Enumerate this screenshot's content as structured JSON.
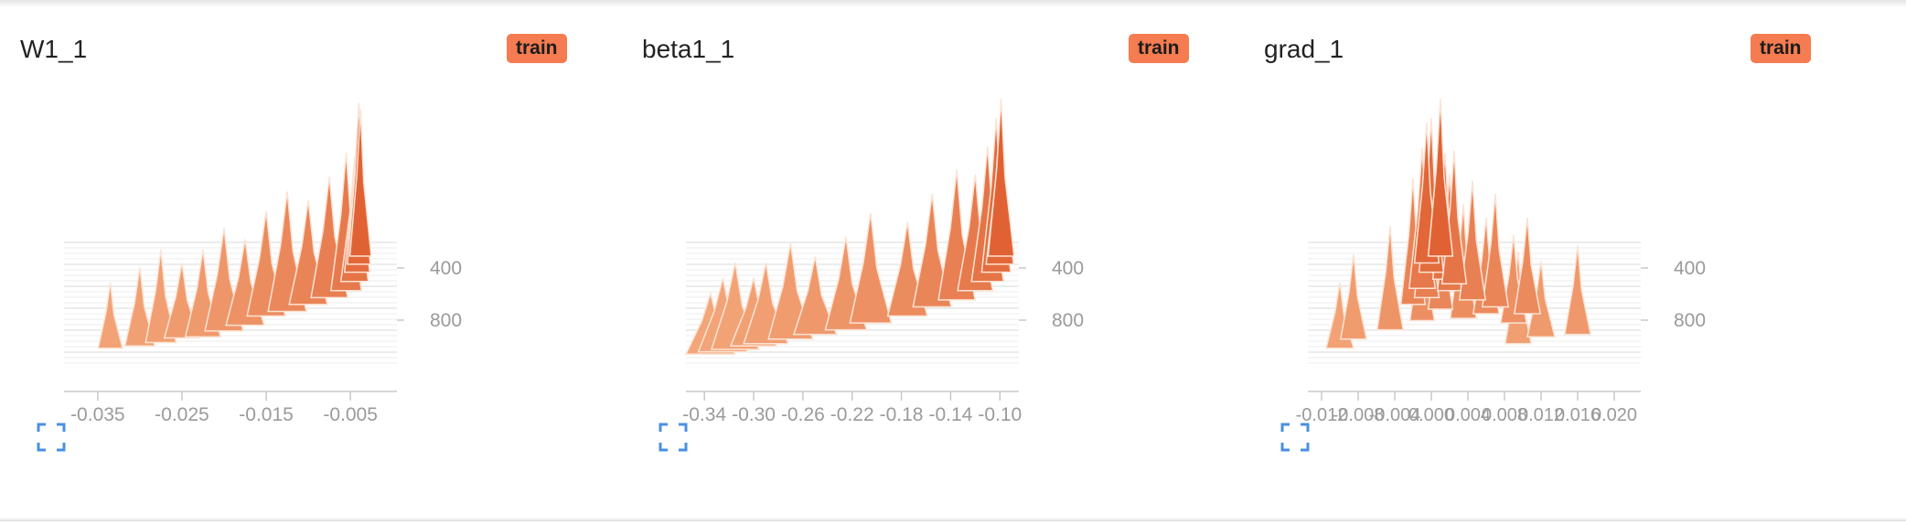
{
  "run_color": "#f47c50",
  "expand_icon": "fullscreen-icon",
  "chart_data": [
    {
      "type": "histogram",
      "title": "W1_1",
      "run": "train",
      "x_ticks": [
        -0.035,
        -0.025,
        -0.015,
        -0.005
      ],
      "x_tick_labels": [
        "-0.035",
        "-0.025",
        "-0.015",
        "-0.005"
      ],
      "xlim": [
        -0.039,
        -0.001
      ],
      "step_ticks": [
        400,
        800
      ],
      "step_tick_labels": [
        "400",
        "800"
      ],
      "steps": [
        1000,
        900,
        800,
        700,
        600,
        500,
        400,
        300,
        200,
        100,
        0
      ],
      "peaks": [
        [
          -0.0335,
          0.08,
          0.2
        ],
        [
          -0.03,
          0.15,
          0.22
        ],
        [
          -0.0275,
          0.16,
          0.25
        ],
        [
          -0.025,
          0.22,
          0.29
        ],
        [
          -0.0225,
          0.22,
          0.3
        ],
        [
          -0.02,
          0.26,
          0.35
        ],
        [
          -0.0175,
          0.26,
          0.4
        ],
        [
          -0.015,
          0.26,
          0.48
        ],
        [
          -0.0125,
          0.26,
          0.52
        ],
        [
          -0.01,
          0.26,
          0.58
        ],
        [
          -0.0075,
          0.24,
          0.64
        ],
        [
          -0.0055,
          0.16,
          0.7
        ],
        [
          -0.0045,
          0.12,
          0.78
        ],
        [
          -0.0042,
          0.09,
          0.86
        ],
        [
          -0.004,
          0.06,
          0.93
        ],
        [
          -0.0038,
          0.04,
          1.0
        ]
      ]
    },
    {
      "type": "histogram",
      "title": "beta1_1",
      "run": "train",
      "x_ticks": [
        -0.34,
        -0.3,
        -0.26,
        -0.22,
        -0.18,
        -0.14,
        -0.1
      ],
      "x_tick_labels": [
        "-0.34",
        "-0.30",
        "-0.26",
        "-0.22",
        "-0.18",
        "-0.14",
        "-0.10"
      ],
      "xlim": [
        -0.355,
        -0.095
      ],
      "step_ticks": [
        400,
        800
      ],
      "step_tick_labels": [
        "400",
        "800"
      ],
      "steps": [
        1000,
        900,
        800,
        700,
        600,
        500,
        400,
        300,
        200,
        100,
        0
      ],
      "peaks": [
        [
          -0.335,
          0.4,
          0.15
        ],
        [
          -0.325,
          0.4,
          0.17
        ],
        [
          -0.315,
          0.38,
          0.19
        ],
        [
          -0.3,
          0.36,
          0.22
        ],
        [
          -0.29,
          0.34,
          0.24
        ],
        [
          -0.27,
          0.34,
          0.28
        ],
        [
          -0.25,
          0.32,
          0.32
        ],
        [
          -0.225,
          0.3,
          0.36
        ],
        [
          -0.205,
          0.3,
          0.42
        ],
        [
          -0.175,
          0.28,
          0.48
        ],
        [
          -0.155,
          0.26,
          0.56
        ],
        [
          -0.135,
          0.24,
          0.62
        ],
        [
          -0.12,
          0.22,
          0.7
        ],
        [
          -0.11,
          0.18,
          0.78
        ],
        [
          -0.103,
          0.14,
          0.86
        ],
        [
          -0.1,
          0.12,
          0.93
        ],
        [
          -0.099,
          0.1,
          1.0
        ]
      ]
    },
    {
      "type": "histogram",
      "title": "grad_1",
      "run": "train",
      "x_ticks": [
        -0.012,
        -0.008,
        -0.004,
        0.0,
        0.004,
        0.008,
        0.012,
        0.016,
        0.02
      ],
      "x_tick_labels": [
        "-0.012",
        "-0.008",
        "-0.004",
        "0.000",
        "0.004",
        "0.008",
        "0.012",
        "0.016",
        "0.020"
      ],
      "xlim": [
        -0.0135,
        0.0215
      ],
      "step_ticks": [
        400,
        800
      ],
      "step_tick_labels": [
        "400",
        "800"
      ],
      "steps": [
        1000,
        900,
        800,
        700,
        600,
        500,
        400,
        300,
        200,
        100,
        0
      ],
      "peaks": [
        [
          -0.01,
          0.12,
          0.2
        ],
        [
          -0.0085,
          0.1,
          0.28
        ],
        [
          0.0095,
          0.1,
          0.24
        ],
        [
          0.012,
          0.12,
          0.3
        ],
        [
          0.016,
          0.1,
          0.32
        ],
        [
          -0.0045,
          0.1,
          0.36
        ],
        [
          0.009,
          0.1,
          0.42
        ],
        [
          -0.001,
          0.08,
          0.44
        ],
        [
          0.0035,
          0.1,
          0.46
        ],
        [
          0.006,
          0.1,
          0.5
        ],
        [
          0.001,
          0.08,
          0.54
        ],
        [
          -0.002,
          0.08,
          0.58
        ],
        [
          0.0105,
          0.1,
          0.5
        ],
        [
          0.007,
          0.1,
          0.56
        ],
        [
          -0.0005,
          0.08,
          0.64
        ],
        [
          0.002,
          0.08,
          0.7
        ],
        [
          0.0045,
          0.1,
          0.62
        ],
        [
          -0.001,
          0.1,
          0.72
        ],
        [
          0.0015,
          0.08,
          0.8
        ],
        [
          0.0025,
          0.08,
          0.76
        ],
        [
          0.0,
          0.08,
          0.86
        ],
        [
          -0.0005,
          0.08,
          0.94
        ],
        [
          0.001,
          0.08,
          1.0
        ]
      ]
    }
  ]
}
